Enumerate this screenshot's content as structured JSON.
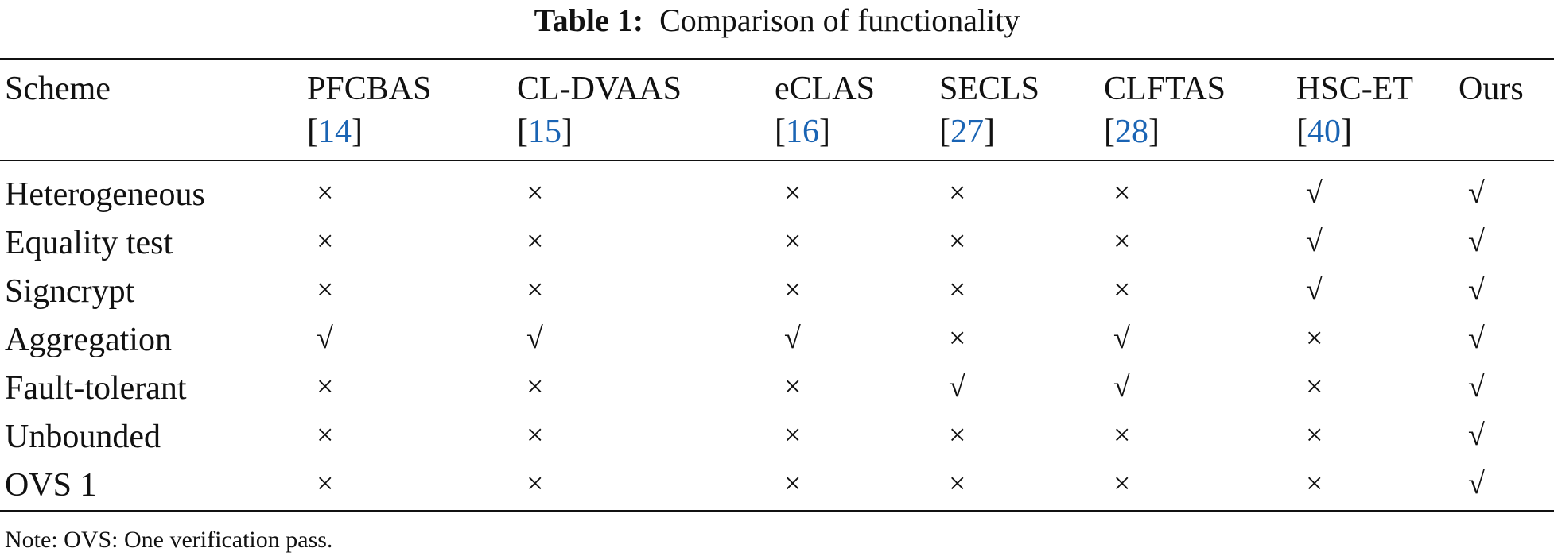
{
  "caption": {
    "label": "Table 1:",
    "text": "Comparison of functionality"
  },
  "table": {
    "header": [
      {
        "name": "Scheme"
      },
      {
        "name": "PFCBAS",
        "cite": [
          "[",
          "14",
          "]"
        ]
      },
      {
        "name": "CL-DVAAS",
        "cite": [
          "[",
          "15",
          "]"
        ]
      },
      {
        "name": "eCLAS",
        "cite": [
          "[",
          "16",
          "]"
        ]
      },
      {
        "name": "SECLS",
        "cite": [
          "[",
          "27",
          "]"
        ]
      },
      {
        "name": "CLFTAS",
        "cite": [
          "[",
          "28",
          "]"
        ]
      },
      {
        "name": "HSC-ET",
        "cite": [
          "[",
          "40",
          "]"
        ]
      },
      {
        "name": "Ours"
      }
    ],
    "rows": [
      [
        "Heterogeneous",
        "×",
        "×",
        "×",
        "×",
        "×",
        "√",
        "√"
      ],
      [
        "Equality test",
        "×",
        "×",
        "×",
        "×",
        "×",
        "√",
        "√"
      ],
      [
        "Signcrypt",
        "×",
        "×",
        "×",
        "×",
        "×",
        "√",
        "√"
      ],
      [
        "Aggregation",
        "√",
        "√",
        "√",
        "×",
        "√",
        "×",
        "√"
      ],
      [
        "Fault-tolerant",
        "×",
        "×",
        "×",
        "√",
        "√",
        "×",
        "√"
      ],
      [
        "Unbounded",
        "×",
        "×",
        "×",
        "×",
        "×",
        "×",
        "√"
      ],
      [
        "OVS 1",
        "×",
        "×",
        "×",
        "×",
        "×",
        "×",
        "√"
      ]
    ]
  },
  "note": "Note: OVS: One verification pass."
}
